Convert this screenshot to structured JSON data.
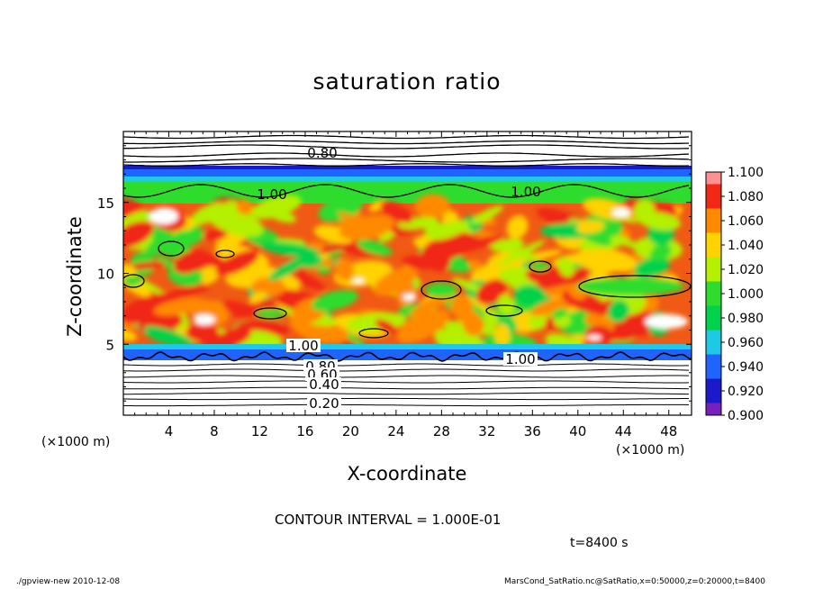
{
  "title": "saturation ratio",
  "chart_data": {
    "type": "heatmap",
    "title": "saturation ratio",
    "xlabel": "X-coordinate",
    "ylabel": "Z-coordinate",
    "x_unit": "(×1000 m)",
    "z_unit": "(×1000 m)",
    "xlim": [
      0,
      50
    ],
    "ylim": [
      0,
      20
    ],
    "x_ticks": [
      4,
      8,
      12,
      16,
      20,
      24,
      28,
      32,
      36,
      40,
      44,
      48
    ],
    "y_ticks": [
      5,
      10,
      15
    ],
    "colorbar": {
      "levels": [
        0.9,
        0.92,
        0.94,
        0.96,
        0.98,
        1.0,
        1.02,
        1.04,
        1.06,
        1.08,
        1.1
      ],
      "labels": [
        "0.900",
        "0.920",
        "0.940",
        "0.960",
        "0.980",
        "1.000",
        "1.020",
        "1.040",
        "1.060",
        "1.080",
        "1.100"
      ],
      "colors": [
        "#7a1fbf",
        "#1a1acc",
        "#1f64ff",
        "#1fc8e6",
        "#00d24a",
        "#2edc2e",
        "#b4f000",
        "#ffd200",
        "#ff8a00",
        "#f02814",
        "#ff9090",
        "#ffffff"
      ]
    },
    "contour_labels": [
      "0.80",
      "1.00",
      "1.00",
      "1.00",
      "0.80",
      "0.60",
      "0.40",
      "0.20",
      "1.00"
    ],
    "contour_interval": "CONTOUR INTERVAL = 1.000E-01",
    "time": "t=8400 s"
  },
  "footer": {
    "left": "./gpview-new  2010-12-08",
    "right": "MarsCond_SatRatio.nc@SatRatio,x=0:50000,z=0:20000,t=8400"
  }
}
